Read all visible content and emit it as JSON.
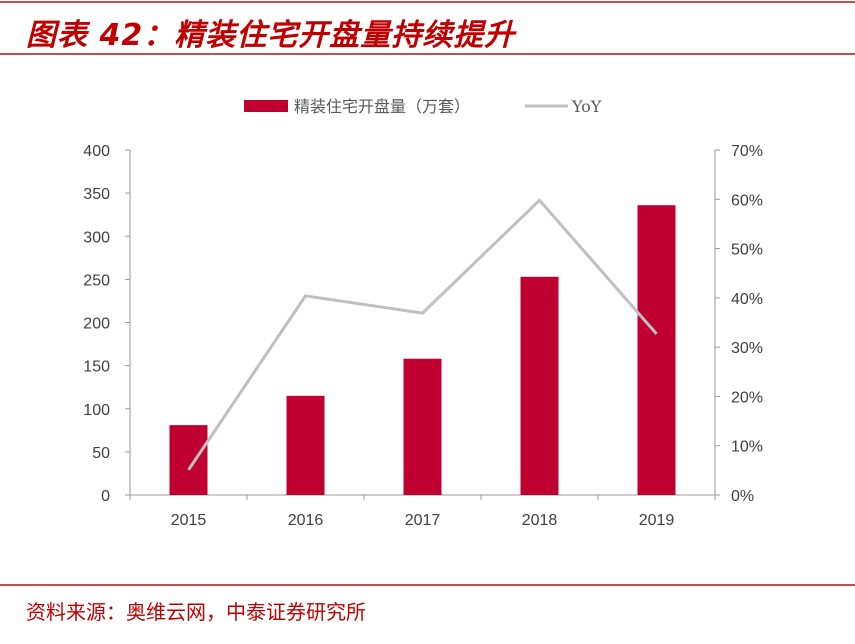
{
  "title": "图表 42：精装住宅开盘量持续提升",
  "source": "资料来源：奥维云网，中泰证券研究所",
  "colors": {
    "bar": "#c00030",
    "line": "#c0c0c0",
    "accent": "#c00000"
  },
  "chart_data": {
    "type": "bar+line",
    "categories": [
      "2015",
      "2016",
      "2017",
      "2018",
      "2019"
    ],
    "series": [
      {
        "name": "精装住宅开盘量（万套）",
        "type": "bar",
        "axis": "left",
        "values": [
          81,
          115,
          158,
          253,
          336
        ]
      },
      {
        "name": "YoY",
        "type": "line",
        "axis": "right",
        "values": [
          5.1,
          40.4,
          36.9,
          59.8,
          32.7
        ]
      }
    ],
    "left_axis": {
      "ylim": [
        0,
        400
      ],
      "ticks": [
        "0",
        "50",
        "100",
        "150",
        "200",
        "250",
        "300",
        "350",
        "400"
      ]
    },
    "right_axis": {
      "ylim": [
        0,
        70
      ],
      "ticks": [
        "0%",
        "10%",
        "20%",
        "30%",
        "40%",
        "50%",
        "60%",
        "70%"
      ]
    },
    "legend_position": "top",
    "grid": false
  }
}
